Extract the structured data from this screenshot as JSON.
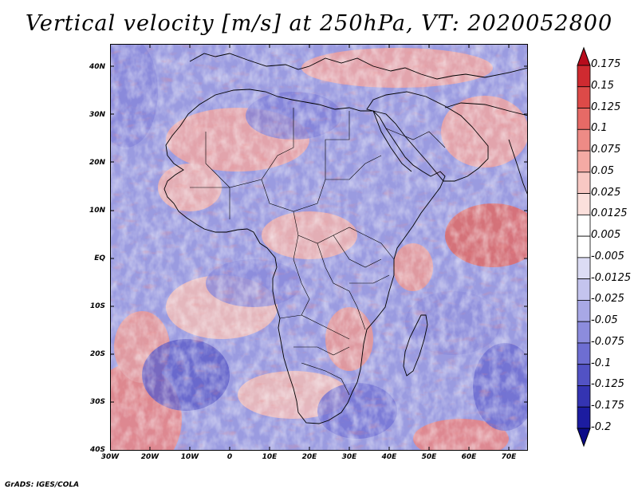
{
  "title": "Vertical velocity [m/s] at 250hPa, VT: 2020052800",
  "map": {
    "lat_labels": [
      "40N",
      "30N",
      "20N",
      "10N",
      "EQ",
      "10S",
      "20S",
      "30S",
      "40S"
    ],
    "lon_labels": [
      "30W",
      "20W",
      "10W",
      "0",
      "10E",
      "20E",
      "30E",
      "40E",
      "50E",
      "60E",
      "70E"
    ]
  },
  "colorbar": {
    "labels": [
      "0.175",
      "0.15",
      "0.125",
      "0.1",
      "0.075",
      "0.05",
      "0.025",
      "0.0125",
      "0.005",
      "-0.005",
      "-0.0125",
      "-0.025",
      "-0.05",
      "-0.075",
      "-0.1",
      "-0.125",
      "-0.175",
      "-0.2"
    ],
    "colors": [
      "#b80c1c",
      "#cf2a30",
      "#dd4a48",
      "#e66a66",
      "#ee8b86",
      "#f4aaa4",
      "#f8c8c3",
      "#fbe0dc",
      "#ffffff",
      "#ffffff",
      "#dcdcf4",
      "#c4c4ee",
      "#a8a8e6",
      "#8c8cdd",
      "#6e6ed2",
      "#5252c4",
      "#3434b2",
      "#1c1ca0",
      "#0a0a88"
    ]
  },
  "credit": "GrADS: IGES/COLA"
}
